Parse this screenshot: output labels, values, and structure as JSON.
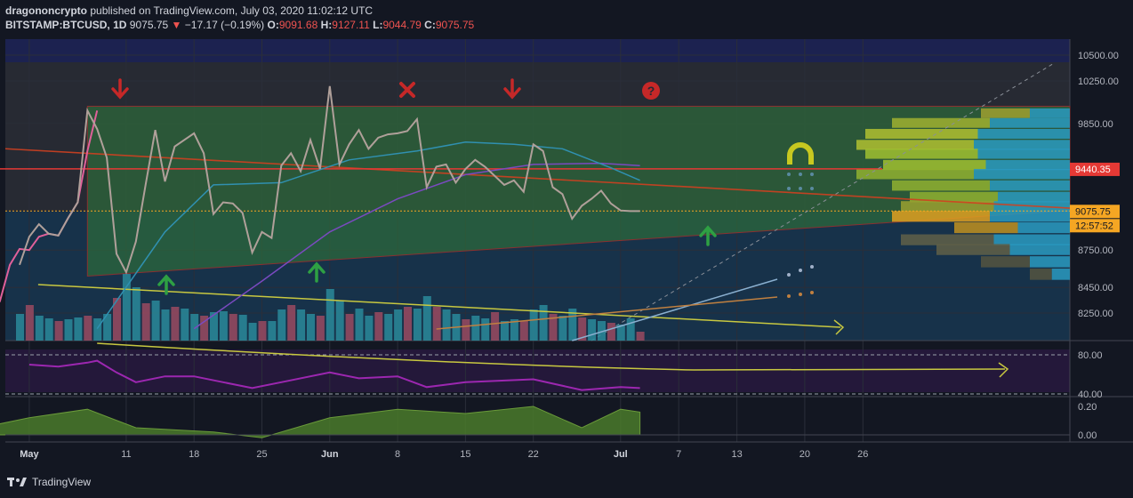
{
  "header": {
    "publisher": "dragononcrypto",
    "published_text": "published on TradingView.com, July 03, 2020 11:02:12 UTC",
    "symbol": "BITSTAMP:BTCUSD, 1D",
    "last": "9075.75",
    "change": "−17.17 (−0.19%)",
    "o_label": "O:",
    "o": "9091.68",
    "h_label": "H:",
    "h": "9127.11",
    "l_label": "L:",
    "l": "9044.79",
    "c_label": "C:",
    "c": "9075.75"
  },
  "footer": {
    "brand": "TradingView"
  },
  "colors": {
    "bg": "#131722",
    "grid": "#2a2e39",
    "price_line": "#b0a09a",
    "pink_line": "#e0609a",
    "green_zone": "#2e6b3a",
    "red_level": "#e53935",
    "yellow_trend": "#c8c840",
    "rsi_line": "#9c27b0",
    "osc_fill": "#4a7a2a",
    "label_orange": "#f5a623"
  },
  "chart_data": {
    "type": "line",
    "title": "",
    "xlabel": "",
    "ylabel": "",
    "x_tick_labels": [
      "May",
      "11",
      "18",
      "25",
      "Jun",
      "8",
      "15",
      "22",
      "Jul",
      "7",
      "13",
      "20",
      "26"
    ],
    "x_tick_dates": [
      "2020-05-01",
      "2020-05-11",
      "2020-05-18",
      "2020-05-25",
      "2020-06-01",
      "2020-06-08",
      "2020-06-15",
      "2020-06-22",
      "2020-07-01",
      "2020-07-07",
      "2020-07-13",
      "2020-07-20",
      "2020-07-26"
    ],
    "ylim": [
      8000,
      10600
    ],
    "y_scale": "log",
    "price_ticks": [
      "10500.00",
      "10250.00",
      "9850.00",
      "9440.35",
      "9075.75",
      "8750.00",
      "8450.00",
      "8250.00"
    ],
    "price_tick_values": [
      10500,
      10250,
      9850,
      8750,
      8450,
      8250
    ],
    "price_labels": [
      {
        "text": "9440.35",
        "value": 9440.35,
        "bg": "#e53935"
      },
      {
        "text": "9075.75",
        "value": 9075.75,
        "bg": "#f5a623"
      },
      {
        "text": "12:57:52",
        "value": 8985,
        "bg": "#f5a623"
      }
    ],
    "series": [
      {
        "kind": "close",
        "x": [
          "2020-04-30",
          "2020-05-01",
          "2020-05-02",
          "2020-05-03",
          "2020-05-04",
          "2020-05-05",
          "2020-05-06",
          "2020-05-07",
          "2020-05-08",
          "2020-05-09",
          "2020-05-10",
          "2020-05-11",
          "2020-05-12",
          "2020-05-13",
          "2020-05-14",
          "2020-05-15",
          "2020-05-16",
          "2020-05-17",
          "2020-05-18",
          "2020-05-19",
          "2020-05-20",
          "2020-05-21",
          "2020-05-22",
          "2020-05-23",
          "2020-05-24",
          "2020-05-25",
          "2020-05-26",
          "2020-05-27",
          "2020-05-28",
          "2020-05-29",
          "2020-05-30",
          "2020-05-31",
          "2020-06-01",
          "2020-06-02",
          "2020-06-03",
          "2020-06-04",
          "2020-06-05",
          "2020-06-06",
          "2020-06-07",
          "2020-06-08",
          "2020-06-09",
          "2020-06-10",
          "2020-06-11",
          "2020-06-12",
          "2020-06-13",
          "2020-06-14",
          "2020-06-15",
          "2020-06-16",
          "2020-06-17",
          "2020-06-18",
          "2020-06-19",
          "2020-06-20",
          "2020-06-21",
          "2020-06-22",
          "2020-06-23",
          "2020-06-24",
          "2020-06-25",
          "2020-06-26",
          "2020-06-27",
          "2020-06-28",
          "2020-06-29",
          "2020-06-30",
          "2020-07-01",
          "2020-07-02",
          "2020-07-03"
        ],
        "y": [
          8630,
          8860,
          8965,
          8885,
          8870,
          9015,
          9150,
          9970,
          9800,
          9540,
          8720,
          8570,
          8820,
          9300,
          9790,
          9330,
          9640,
          9700,
          9760,
          9580,
          9050,
          9150,
          9140,
          9060,
          8730,
          8900,
          8850,
          9470,
          9580,
          9420,
          9700,
          9440,
          10200,
          9480,
          9660,
          9790,
          9620,
          9720,
          9750,
          9760,
          9780,
          9890,
          9280,
          9460,
          9480,
          9320,
          9440,
          9520,
          9460,
          9380,
          9300,
          9340,
          9240,
          9660,
          9600,
          9280,
          9220,
          9010,
          9120,
          9180,
          9250,
          9140,
          9080,
          9075,
          9075
        ]
      },
      {
        "kind": "pink_left",
        "x": [
          "2020-04-26",
          "2020-04-27",
          "2020-04-28",
          "2020-04-29",
          "2020-04-30",
          "2020-05-01",
          "2020-05-02",
          "2020-05-03",
          "2020-05-04",
          "2020-05-05",
          "2020-05-06",
          "2020-05-07",
          "2020-05-08"
        ],
        "y": [
          7700,
          8500,
          8350,
          8630,
          8760,
          8750,
          8860,
          8885,
          8870,
          9015,
          9150,
          9600,
          9970
        ]
      },
      {
        "kind": "ma_blue",
        "x": [
          "2020-05-08",
          "2020-05-15",
          "2020-05-20",
          "2020-05-27",
          "2020-06-03",
          "2020-06-10",
          "2020-06-15",
          "2020-06-20",
          "2020-06-25",
          "2020-06-30",
          "2020-07-03"
        ],
        "y": [
          8130,
          8900,
          9300,
          9320,
          9520,
          9600,
          9680,
          9660,
          9620,
          9450,
          9340
        ]
      },
      {
        "kind": "ma_purple",
        "x": [
          "2020-05-18",
          "2020-05-25",
          "2020-06-01",
          "2020-06-08",
          "2020-06-15",
          "2020-06-22",
          "2020-06-29",
          "2020-07-03"
        ],
        "y": [
          8130,
          8500,
          8900,
          9180,
          9390,
          9480,
          9490,
          9470
        ]
      },
      {
        "kind": "level_red",
        "x": [
          "2020-04-26",
          "2020-07-28"
        ],
        "y": [
          9440.35,
          9440.35
        ]
      },
      {
        "kind": "trend_yellow",
        "x": [
          "2020-05-01",
          "2020-07-03"
        ],
        "y": [
          8480,
          8220
        ]
      }
    ],
    "volume": [
      30,
      40,
      28,
      25,
      22,
      24,
      26,
      28,
      25,
      30,
      48,
      75,
      60,
      42,
      45,
      35,
      38,
      36,
      30,
      28,
      32,
      33,
      30,
      29,
      20,
      22,
      22,
      35,
      40,
      35,
      30,
      28,
      58,
      45,
      30,
      36,
      28,
      32,
      30,
      35,
      38,
      36,
      50,
      38,
      35,
      30,
      24,
      28,
      25,
      32,
      22,
      24,
      22,
      35,
      40,
      30,
      28,
      36,
      26,
      24,
      22,
      20,
      18,
      25,
      10
    ],
    "rsi": {
      "x": [
        "2020-05-01",
        "2020-05-04",
        "2020-05-07",
        "2020-05-08",
        "2020-05-10",
        "2020-05-12",
        "2020-05-15",
        "2020-05-18",
        "2020-05-21",
        "2020-05-24",
        "2020-05-27",
        "2020-06-01",
        "2020-06-04",
        "2020-06-08",
        "2020-06-11",
        "2020-06-15",
        "2020-06-22",
        "2020-06-27",
        "2020-07-01",
        "2020-07-03"
      ],
      "y": [
        70,
        68,
        72,
        74,
        62,
        52,
        58,
        58,
        52,
        46,
        52,
        62,
        56,
        58,
        47,
        52,
        55,
        44,
        47,
        46
      ],
      "ticks": [
        "80.00",
        "40.00"
      ],
      "tick_values": [
        80,
        40
      ]
    },
    "osc": {
      "x": [
        "2020-04-26",
        "2020-05-01",
        "2020-05-07",
        "2020-05-12",
        "2020-05-20",
        "2020-05-25",
        "2020-06-01",
        "2020-06-08",
        "2020-06-15",
        "2020-06-22",
        "2020-06-27",
        "2020-07-01",
        "2020-07-03"
      ],
      "y": [
        0.05,
        0.12,
        0.18,
        0.05,
        0.02,
        -0.02,
        0.12,
        0.18,
        0.15,
        0.2,
        0.05,
        0.18,
        0.16
      ],
      "ticks": [
        "0.20",
        "0.00"
      ],
      "tick_values": [
        0.2,
        0
      ]
    }
  }
}
